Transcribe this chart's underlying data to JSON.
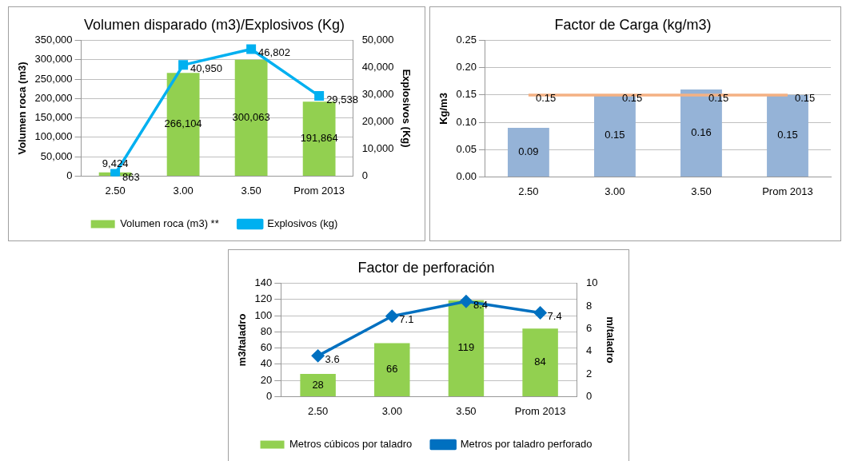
{
  "chart_data": [
    {
      "type": "bar",
      "title": "Volumen disparado (m3)/Explosivos (Kg)",
      "ylabel": "Volumen roca (m3)",
      "y2label": "Explosivos (Kg)",
      "categories": [
        "2.50",
        "3.00",
        "3.50",
        "Prom 2013"
      ],
      "series": [
        {
          "name": "Volumen roca (m3) **",
          "color": "#92d050",
          "values": [
            9424,
            266104,
            300063,
            191864
          ],
          "value_labels": [
            "9,424",
            "266,104",
            "300,063",
            "191,864"
          ]
        },
        {
          "name": "Explosivos (kg)",
          "type": "line",
          "axis": "y2",
          "color": "#00b0f0",
          "marker": "square",
          "values": [
            863,
            40950,
            46802,
            29538
          ],
          "value_labels": [
            "863",
            "40,950",
            "46,802",
            "29,538"
          ]
        }
      ],
      "ylim": [
        0,
        350000
      ],
      "yticks": [
        {
          "value": 0,
          "label": "0"
        },
        {
          "value": 50000,
          "label": "50,000"
        },
        {
          "value": 100000,
          "label": "100,000"
        },
        {
          "value": 150000,
          "label": "150,000"
        },
        {
          "value": 200000,
          "label": "200,000"
        },
        {
          "value": 250000,
          "label": "250,000"
        },
        {
          "value": 300000,
          "label": "300,000"
        },
        {
          "value": 350000,
          "label": "350,000"
        }
      ],
      "y2lim": [
        0,
        50000
      ],
      "y2ticks": [
        {
          "value": 0,
          "label": "0"
        },
        {
          "value": 10000,
          "label": "10,000"
        },
        {
          "value": 20000,
          "label": "20,000"
        },
        {
          "value": 30000,
          "label": "30,000"
        },
        {
          "value": 40000,
          "label": "40,000"
        },
        {
          "value": 50000,
          "label": "50,000"
        }
      ],
      "grid": "y",
      "legend": "bottom"
    },
    {
      "type": "bar",
      "title": "Factor de Carga (kg/m3)",
      "ylabel": "Kg/m3",
      "categories": [
        "2.50",
        "3.00",
        "3.50",
        "Prom 2013"
      ],
      "series": [
        {
          "color": "#95b3d7",
          "values": [
            0.09,
            0.15,
            0.16,
            0.15
          ],
          "value_labels": [
            "0.09",
            "0.15",
            "0.16",
            "0.15"
          ]
        },
        {
          "type": "line",
          "color": "#f4b183",
          "marker": "none",
          "values": [
            0.15,
            0.15,
            0.15,
            0.15
          ],
          "value_labels": [
            "0.15",
            "0.15",
            "0.15",
            "0.15"
          ]
        }
      ],
      "ylim": [
        0,
        0.25
      ],
      "yticks": [
        {
          "value": 0,
          "label": "0.00"
        },
        {
          "value": 0.05,
          "label": "0.05"
        },
        {
          "value": 0.1,
          "label": "0.10"
        },
        {
          "value": 0.15,
          "label": "0.15"
        },
        {
          "value": 0.2,
          "label": "0.20"
        },
        {
          "value": 0.25,
          "label": "0.25"
        }
      ],
      "grid": "y"
    },
    {
      "type": "bar",
      "title": "Factor de perforación",
      "ylabel": "m3/taladro",
      "y2label": "m/taladro",
      "categories": [
        "2.50",
        "3.00",
        "3.50",
        "Prom 2013"
      ],
      "series": [
        {
          "name": "Metros cúbicos por taladro",
          "color": "#92d050",
          "values": [
            28,
            66,
            119,
            84
          ],
          "value_labels": [
            "28",
            "66",
            "119",
            "84"
          ]
        },
        {
          "name": "Metros por taladro perforado",
          "type": "line",
          "axis": "y2",
          "color": "#0070c0",
          "marker": "diamond",
          "values": [
            3.6,
            7.1,
            8.4,
            7.4
          ],
          "value_labels": [
            "3.6",
            "7.1",
            "8.4",
            "7.4"
          ]
        }
      ],
      "ylim": [
        0,
        140
      ],
      "yticks": [
        0,
        20,
        40,
        60,
        80,
        100,
        120,
        140
      ],
      "y2lim": [
        0,
        10
      ],
      "y2ticks": [
        0,
        2,
        4,
        6,
        8,
        10
      ],
      "grid": "y",
      "legend": "bottom"
    }
  ]
}
